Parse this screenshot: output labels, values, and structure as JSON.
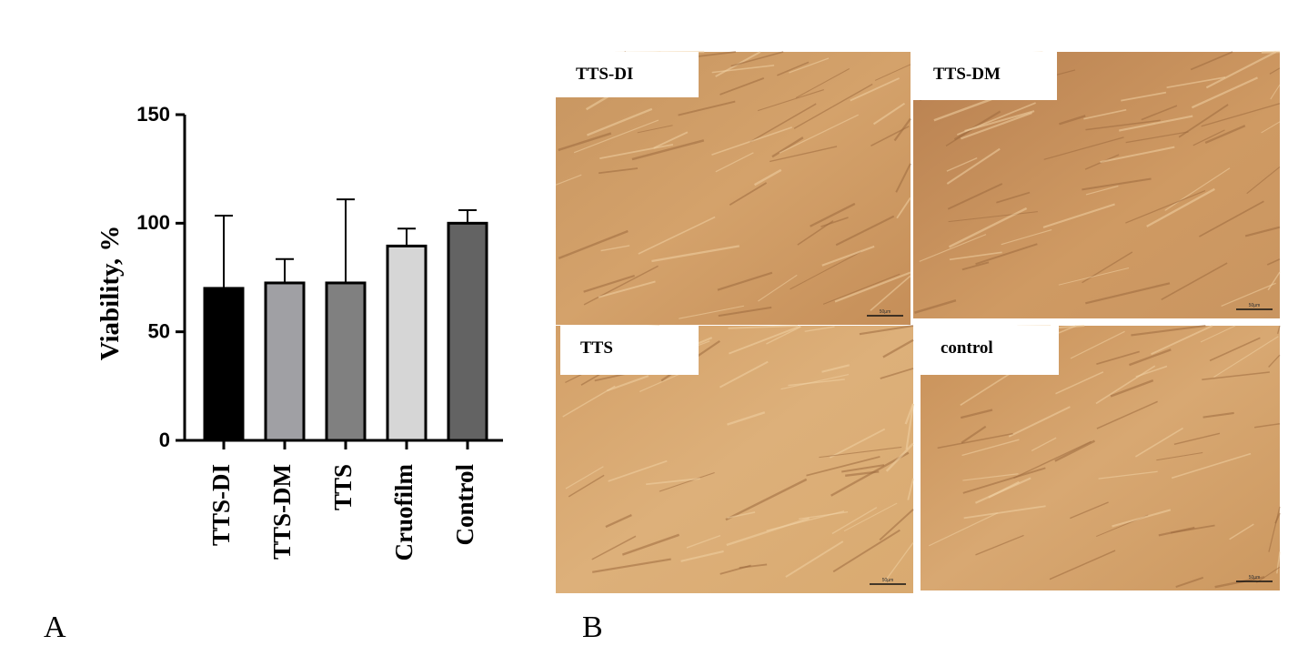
{
  "chart_data": {
    "type": "bar",
    "ylabel": "Viability, %",
    "categories": [
      "TTS-DI",
      "TTS-DM",
      "TTS",
      "Cruofilm",
      "Control"
    ],
    "values": [
      70,
      72.5,
      72.5,
      89.5,
      100
    ],
    "errors": [
      33.5,
      11,
      38.5,
      8,
      6
    ],
    "colors": [
      "#000000",
      "#a0a0a4",
      "#808080",
      "#d6d6d6",
      "#636363"
    ],
    "ylim": [
      0,
      150
    ],
    "yticks": [
      0,
      50,
      100,
      150
    ]
  },
  "panel_labels": [
    "A",
    "B"
  ],
  "micrographs": [
    {
      "label": "TTS-DI",
      "scale_bar": "50µm"
    },
    {
      "label": "TTS-DM",
      "scale_bar": "50µm"
    },
    {
      "label": "TTS",
      "scale_bar": "50µm"
    },
    {
      "label": "control",
      "scale_bar": "50µm"
    }
  ]
}
